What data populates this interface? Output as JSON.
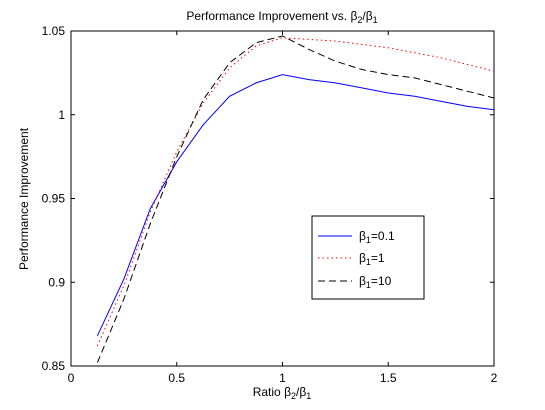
{
  "chart_data": {
    "type": "line",
    "title": {
      "prefix": "Performance Improvement vs. ",
      "num": "β",
      "num_sub": "2",
      "slash": "/",
      "den": "β",
      "den_sub": "1"
    },
    "xlabel": {
      "prefix": "Ratio ",
      "num": "β",
      "num_sub": "2",
      "slash": "/",
      "den": "β",
      "den_sub": "1"
    },
    "ylabel": "Performance Improvement",
    "xlim": [
      0,
      2
    ],
    "ylim": [
      0.85,
      1.05
    ],
    "xticks": [
      {
        "value": 0,
        "label": "0"
      },
      {
        "value": 0.5,
        "label": "0.5"
      },
      {
        "value": 1,
        "label": "1"
      },
      {
        "value": 1.5,
        "label": "1.5"
      },
      {
        "value": 2,
        "label": "2"
      }
    ],
    "yticks": [
      {
        "value": 0.85,
        "label": "0.85"
      },
      {
        "value": 0.9,
        "label": "0.9"
      },
      {
        "value": 0.95,
        "label": "0.95"
      },
      {
        "value": 1,
        "label": "1"
      },
      {
        "value": 1.05,
        "label": "1.05"
      }
    ],
    "grid": false,
    "legend_position": "lower-right",
    "series": [
      {
        "legend_symbol": "β",
        "legend_sub": "1",
        "legend_value": "=0.1",
        "color": "#0000ff",
        "dash": "solid",
        "x": [
          0.125,
          0.25,
          0.375,
          0.5,
          0.625,
          0.75,
          0.875,
          1.0,
          1.125,
          1.25,
          1.375,
          1.5,
          1.625,
          1.75,
          1.875,
          2.0
        ],
        "y": [
          0.868,
          0.902,
          0.944,
          0.972,
          0.994,
          1.011,
          1.019,
          1.024,
          1.021,
          1.019,
          1.016,
          1.013,
          1.011,
          1.008,
          1.005,
          1.003
        ]
      },
      {
        "legend_symbol": "β",
        "legend_sub": "1",
        "legend_value": "=1",
        "color": "#ff0000",
        "dash": "dotted",
        "x": [
          0.125,
          0.25,
          0.375,
          0.5,
          0.625,
          0.75,
          0.875,
          1.0,
          1.125,
          1.25,
          1.375,
          1.5,
          1.625,
          1.75,
          1.875,
          2.0
        ],
        "y": [
          0.862,
          0.898,
          0.942,
          0.978,
          1.007,
          1.028,
          1.041,
          1.046,
          1.045,
          1.044,
          1.042,
          1.04,
          1.037,
          1.034,
          1.03,
          1.026
        ]
      },
      {
        "legend_symbol": "β",
        "legend_sub": "1",
        "legend_value": "=10",
        "color": "#000000",
        "dash": "dashed",
        "x": [
          0.125,
          0.25,
          0.375,
          0.5,
          0.625,
          0.75,
          0.875,
          1.0,
          1.125,
          1.25,
          1.375,
          1.5,
          1.625,
          1.75,
          1.875,
          2.0
        ],
        "y": [
          0.852,
          0.89,
          0.935,
          0.975,
          1.009,
          1.031,
          1.043,
          1.047,
          1.039,
          1.032,
          1.027,
          1.024,
          1.022,
          1.018,
          1.014,
          1.01
        ]
      }
    ]
  }
}
